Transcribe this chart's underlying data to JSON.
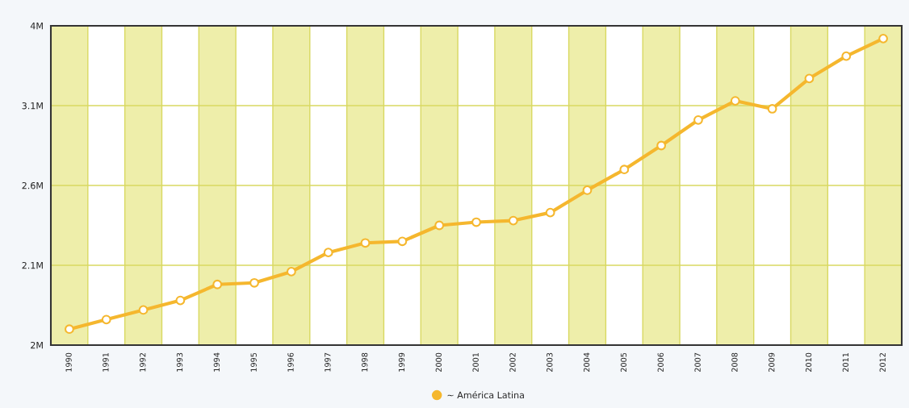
{
  "chart_data": {
    "type": "line",
    "categories": [
      "1990",
      "1991",
      "1992",
      "1993",
      "1994",
      "1995",
      "1996",
      "1997",
      "1998",
      "1999",
      "2000",
      "2001",
      "2002",
      "2003",
      "2004",
      "2005",
      "2006",
      "2007",
      "2008",
      "2009",
      "2010",
      "2011",
      "2012"
    ],
    "series": [
      {
        "name": "~ América Latina",
        "color": "#f5b72e",
        "values": [
          1.7,
          1.76,
          1.82,
          1.88,
          1.98,
          1.99,
          2.06,
          2.18,
          2.24,
          2.25,
          2.35,
          2.37,
          2.38,
          2.43,
          2.57,
          2.7,
          2.85,
          3.01,
          3.13,
          3.08,
          3.27,
          3.41,
          3.52
        ]
      }
    ],
    "ylim": [
      1.6,
      3.6
    ],
    "yticks": [
      {
        "value": 1.6,
        "label": "2M"
      },
      {
        "value": 2.1,
        "label": "2.1M"
      },
      {
        "value": 2.6,
        "label": "2.6M"
      },
      {
        "value": 3.1,
        "label": "3.1M"
      },
      {
        "value": 3.6,
        "label": "4M"
      }
    ],
    "bands": [
      {
        "axis": "x",
        "from": "1990",
        "to": "1990",
        "color": "#eeeeaa"
      },
      {
        "axis": "x",
        "from": "1992",
        "to": "1992",
        "color": "#eeeeaa"
      },
      {
        "axis": "x",
        "from": "1994",
        "to": "1994",
        "color": "#eeeeaa"
      },
      {
        "axis": "x",
        "from": "1996",
        "to": "1996",
        "color": "#eeeeaa"
      },
      {
        "axis": "x",
        "from": "1998",
        "to": "1998",
        "color": "#eeeeaa"
      },
      {
        "axis": "x",
        "from": "2000",
        "to": "2000",
        "color": "#eeeeaa"
      },
      {
        "axis": "x",
        "from": "2002",
        "to": "2002",
        "color": "#eeeeaa"
      },
      {
        "axis": "x",
        "from": "2004",
        "to": "2004",
        "color": "#eeeeaa"
      },
      {
        "axis": "x",
        "from": "2006",
        "to": "2006",
        "color": "#eeeeaa"
      },
      {
        "axis": "x",
        "from": "2008",
        "to": "2008",
        "color": "#eeeeaa"
      },
      {
        "axis": "x",
        "from": "2010",
        "to": "2010",
        "color": "#eeeeaa"
      },
      {
        "axis": "x",
        "from": "2012",
        "to": "2012",
        "color": "#eeeeaa"
      }
    ],
    "grid": "y",
    "marker": "circle",
    "line_style": "solid",
    "legend": "bottom"
  }
}
